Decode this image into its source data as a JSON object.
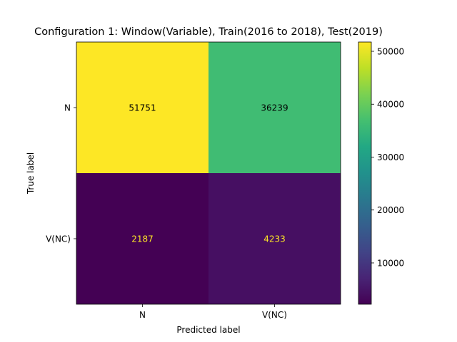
{
  "chart_data": {
    "type": "heatmap",
    "title": "Configuration 1: Window(Variable), Train(2016 to 2018), Test(2019)",
    "xlabel": "Predicted label",
    "ylabel": "True label",
    "x_categories": [
      "N",
      "V(NC)"
    ],
    "y_categories": [
      "N",
      "V(NC)"
    ],
    "values": [
      [
        51751,
        36239
      ],
      [
        2187,
        4233
      ]
    ],
    "colormap": "viridis",
    "colorbar": {
      "ticks": [
        10000,
        20000,
        30000,
        40000,
        50000
      ],
      "tick_labels": [
        "10000",
        "20000",
        "30000",
        "40000",
        "50000"
      ],
      "range": [
        2187,
        51751
      ]
    },
    "text_colors": {
      "on_dark": "#fde725",
      "on_light": "#000000"
    }
  }
}
